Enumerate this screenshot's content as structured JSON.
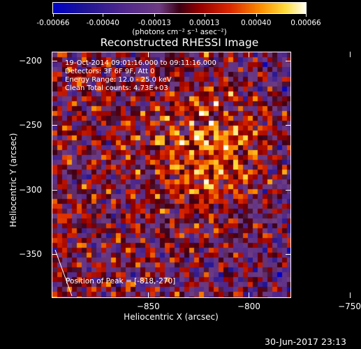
{
  "colorbar": {
    "ticks": [
      "-0.00066",
      "-0.00040",
      "-0.00013",
      "0.00013",
      "0.00040",
      "0.00066"
    ],
    "units": "(photons cm⁻² s⁻¹ asec⁻²)",
    "range": [
      -0.00066,
      0.00066
    ]
  },
  "title": "Reconstructed RHESSI Image",
  "info": {
    "line1": "19-Oct-2014 09:01:16.000 to 09:11:16.000",
    "line2": "Detectors: 3F 6F 9F, Att 0",
    "line3": "Energy Range: 12.0 - 25.0 keV",
    "line4": "Clean     Total counts: 4.73E+03"
  },
  "peak_label": "Position of Peak = [-818,-270]",
  "timestamp": "30-Jun-2017 23:13",
  "chart_data": {
    "type": "heatmap",
    "title": "Reconstructed RHESSI Image",
    "xlabel": "Heliocentric X (arcsec)",
    "ylabel": "Heliocentric Y (arcsec)",
    "xlim": [
      -898,
      -779
    ],
    "ylim": [
      -384,
      -193
    ],
    "x_ticks": [
      -850,
      -800,
      -750
    ],
    "x_tick_labels": [
      "−850",
      "−800",
      "−750"
    ],
    "y_ticks": [
      -200,
      -250,
      -300,
      -350
    ],
    "y_tick_labels": [
      "−200",
      "−250",
      "−300",
      "−350"
    ],
    "peak": [
      -818,
      -270
    ],
    "colormap": "hot with blue/purple negatives",
    "value_range": [
      -0.00066,
      0.00066
    ]
  }
}
